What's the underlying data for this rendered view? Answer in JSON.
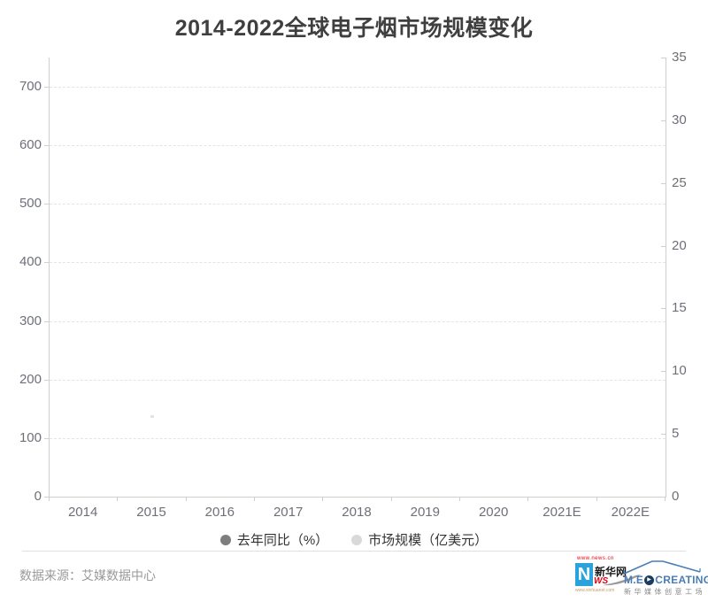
{
  "chart_data": {
    "type": "bar",
    "title": "2014-2022全球电子烟市场规模变化",
    "categories": [
      "2014",
      "2015",
      "2016",
      "2017",
      "2018",
      "2019",
      "2020",
      "2021E",
      "2022E"
    ],
    "series": [
      {
        "name": "去年同比（%）",
        "yaxis": "left",
        "marker_color": "#7e7e7e",
        "values": []
      },
      {
        "name": "市场规模（亿美元）",
        "yaxis": "right",
        "marker_color": "#d9d9d9",
        "values": []
      }
    ],
    "left_axis": {
      "ticks": [
        0,
        100,
        200,
        300,
        400,
        500,
        600,
        700
      ],
      "range": [
        0,
        750
      ]
    },
    "right_axis": {
      "ticks": [
        0,
        5,
        10,
        15,
        20,
        25,
        30,
        35
      ],
      "range": [
        0,
        35
      ]
    },
    "grid": "horizontal dashed lines at left-axis ticks",
    "legend_position": "bottom",
    "plot_note": "plot area rendered empty — no data points visible"
  },
  "footer": {
    "source": "数据来源：艾媒数据中心"
  },
  "logos": {
    "xinhua": {
      "url_top": "www.news.cn",
      "big_letter": "N",
      "name_cn": "新华网",
      "news_suffix": "WS",
      "url_bottom": "www.xinhuanet.com",
      "blue": "#2aa3dc",
      "red": "#e60012"
    },
    "medcreating": {
      "brand_prefix": "M.E",
      "brand_suffix": "CREATING",
      "play_glyph": "▶",
      "subtitle": "新华媒体创意工场",
      "blue": "#4a7cb5",
      "circle_color": "#1b3c5f"
    }
  },
  "colors": {
    "title": "#3f3f3f",
    "axis_line": "#cfcfcf",
    "grid_line": "#e4e4e4",
    "tick_label": "#6e7079",
    "legend_text": "#333333",
    "footer_text": "#9a9a9a",
    "divider": "#e0e0e0"
  }
}
